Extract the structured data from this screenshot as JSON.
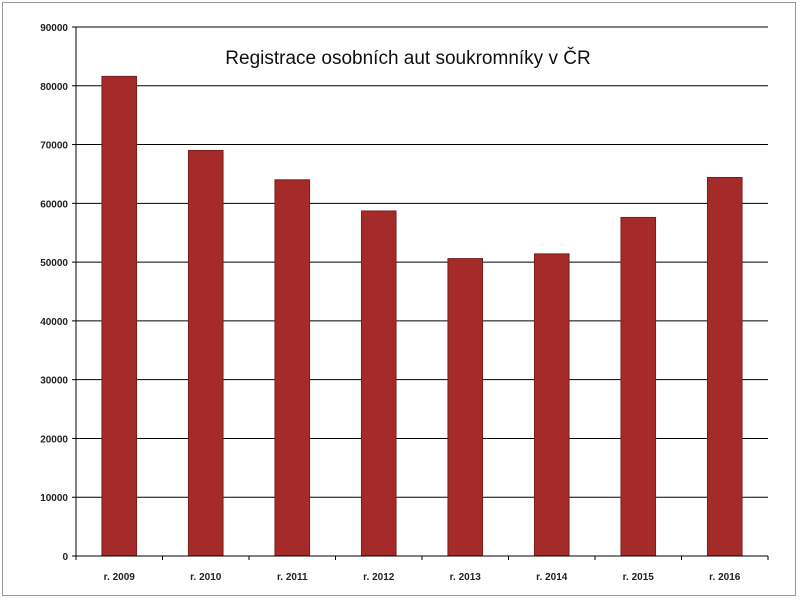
{
  "chart_data": {
    "type": "bar",
    "title": "Registrace osobních aut soukromníky v ČR",
    "xlabel": "",
    "ylabel": "",
    "categories": [
      "r. 2009",
      "r. 2010",
      "r. 2011",
      "r. 2012",
      "r. 2013",
      "r. 2014",
      "r. 2015",
      "r. 2016"
    ],
    "values": [
      81600,
      69000,
      64000,
      58700,
      50600,
      51400,
      57600,
      64400
    ],
    "ylim": [
      0,
      90000
    ],
    "yticks": [
      0,
      10000,
      20000,
      30000,
      40000,
      50000,
      60000,
      70000,
      80000,
      90000
    ],
    "ytick_labels": [
      "0",
      "10000",
      "20000",
      "30000",
      "40000",
      "50000",
      "60000",
      "70000",
      "80000",
      "90000"
    ],
    "grid": true,
    "legend": "none",
    "bar_color": "#a52a2a",
    "bar_edge_color": "#7a1e1e"
  }
}
